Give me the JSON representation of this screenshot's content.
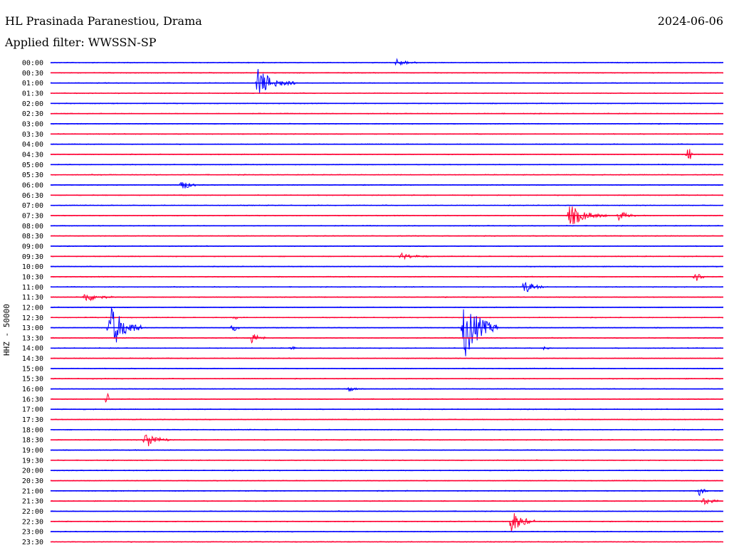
{
  "header": {
    "station": "HL Prasinada Paranestiou, Drama",
    "date": "2024-06-06",
    "filter": "Applied filter: WWSSN-SP",
    "channel_label": "HHZ - 50000"
  },
  "colors": {
    "blue": "#0000ff",
    "red": "#ff0033"
  },
  "chart_data": {
    "type": "line",
    "title": "HL Prasinada Paranestiou, Drama",
    "ylabel": "HHZ - 50000",
    "rows": [
      "00:00",
      "00:30",
      "01:00",
      "01:30",
      "02:00",
      "02:30",
      "03:00",
      "03:30",
      "04:00",
      "04:30",
      "05:00",
      "05:30",
      "06:00",
      "06:30",
      "07:00",
      "07:30",
      "08:00",
      "08:30",
      "09:00",
      "09:30",
      "10:00",
      "10:30",
      "11:00",
      "11:30",
      "12:00",
      "12:30",
      "13:00",
      "13:30",
      "14:00",
      "14:30",
      "15:00",
      "15:30",
      "16:00",
      "16:30",
      "17:00",
      "17:30",
      "18:00",
      "18:30",
      "19:00",
      "19:30",
      "20:00",
      "20:30",
      "21:00",
      "21:30",
      "22:00",
      "22:30",
      "23:00",
      "23:30"
    ],
    "row_labels": [
      "00:00",
      "00:30",
      "01:00",
      "01:30",
      "02:00",
      "02:30",
      "03:00",
      "03:30",
      "04:00",
      "04:30",
      "05:00",
      "05:30",
      "06:00",
      "06:30",
      "07:00",
      "07:30",
      "08:00",
      "08:30",
      "09:00",
      "09:30",
      "10:00",
      "10:30",
      "11:00",
      "11:30",
      "12:00",
      "12:30",
      "13:00",
      "13:30",
      "14:00",
      "14:30",
      "15:00",
      "15:30",
      "16:00",
      "16:30",
      "17:00",
      "17:30",
      "18:00",
      "18:30",
      "19:00",
      "19:30",
      "20:00",
      "20:30",
      "21:00",
      "21:30",
      "22:00",
      "22:30",
      "23:00",
      "23:30"
    ],
    "trace_colors": [
      "blue",
      "red"
    ],
    "events": [
      {
        "row": "00:00",
        "minute": 15.3,
        "amp": 0.35,
        "dur": 1.2
      },
      {
        "row": "01:00",
        "minute": 9.1,
        "amp": 1.4,
        "dur": 1.8
      },
      {
        "row": "04:30",
        "minute": 28.3,
        "amp": 0.9,
        "dur": 0.3
      },
      {
        "row": "06:00",
        "minute": 5.7,
        "amp": 0.6,
        "dur": 0.8
      },
      {
        "row": "07:30",
        "minute": 23.0,
        "amp": 1.1,
        "dur": 1.8
      },
      {
        "row": "07:30",
        "minute": 25.2,
        "amp": 0.5,
        "dur": 0.9
      },
      {
        "row": "09:30",
        "minute": 15.5,
        "amp": 0.3,
        "dur": 1.5
      },
      {
        "row": "10:30",
        "minute": 28.6,
        "amp": 0.5,
        "dur": 0.8
      },
      {
        "row": "11:00",
        "minute": 21.0,
        "amp": 0.7,
        "dur": 1.0
      },
      {
        "row": "11:30",
        "minute": 1.4,
        "amp": 0.5,
        "dur": 1.4
      },
      {
        "row": "12:30",
        "minute": 8.1,
        "amp": 0.15,
        "dur": 0.6
      },
      {
        "row": "13:00",
        "minute": 2.5,
        "amp": 2.4,
        "dur": 1.6
      },
      {
        "row": "13:00",
        "minute": 8.0,
        "amp": 0.4,
        "dur": 0.4
      },
      {
        "row": "13:00",
        "minute": 18.3,
        "amp": 3.2,
        "dur": 1.7
      },
      {
        "row": "13:30",
        "minute": 8.8,
        "amp": 0.6,
        "dur": 0.8
      },
      {
        "row": "14:00",
        "minute": 10.6,
        "amp": 0.2,
        "dur": 0.4
      },
      {
        "row": "14:00",
        "minute": 21.9,
        "amp": 0.2,
        "dur": 0.4
      },
      {
        "row": "16:00",
        "minute": 13.2,
        "amp": 0.3,
        "dur": 0.5
      },
      {
        "row": "16:30",
        "minute": 2.4,
        "amp": 0.7,
        "dur": 0.2
      },
      {
        "row": "18:30",
        "minute": 4.1,
        "amp": 0.9,
        "dur": 1.2
      },
      {
        "row": "21:00",
        "minute": 28.8,
        "amp": 0.5,
        "dur": 0.5
      },
      {
        "row": "21:30",
        "minute": 29.0,
        "amp": 0.4,
        "dur": 1.0
      },
      {
        "row": "22:30",
        "minute": 20.4,
        "amp": 1.2,
        "dur": 1.2
      }
    ],
    "xlim": [
      0,
      30
    ],
    "grid": false,
    "legend": "none"
  }
}
